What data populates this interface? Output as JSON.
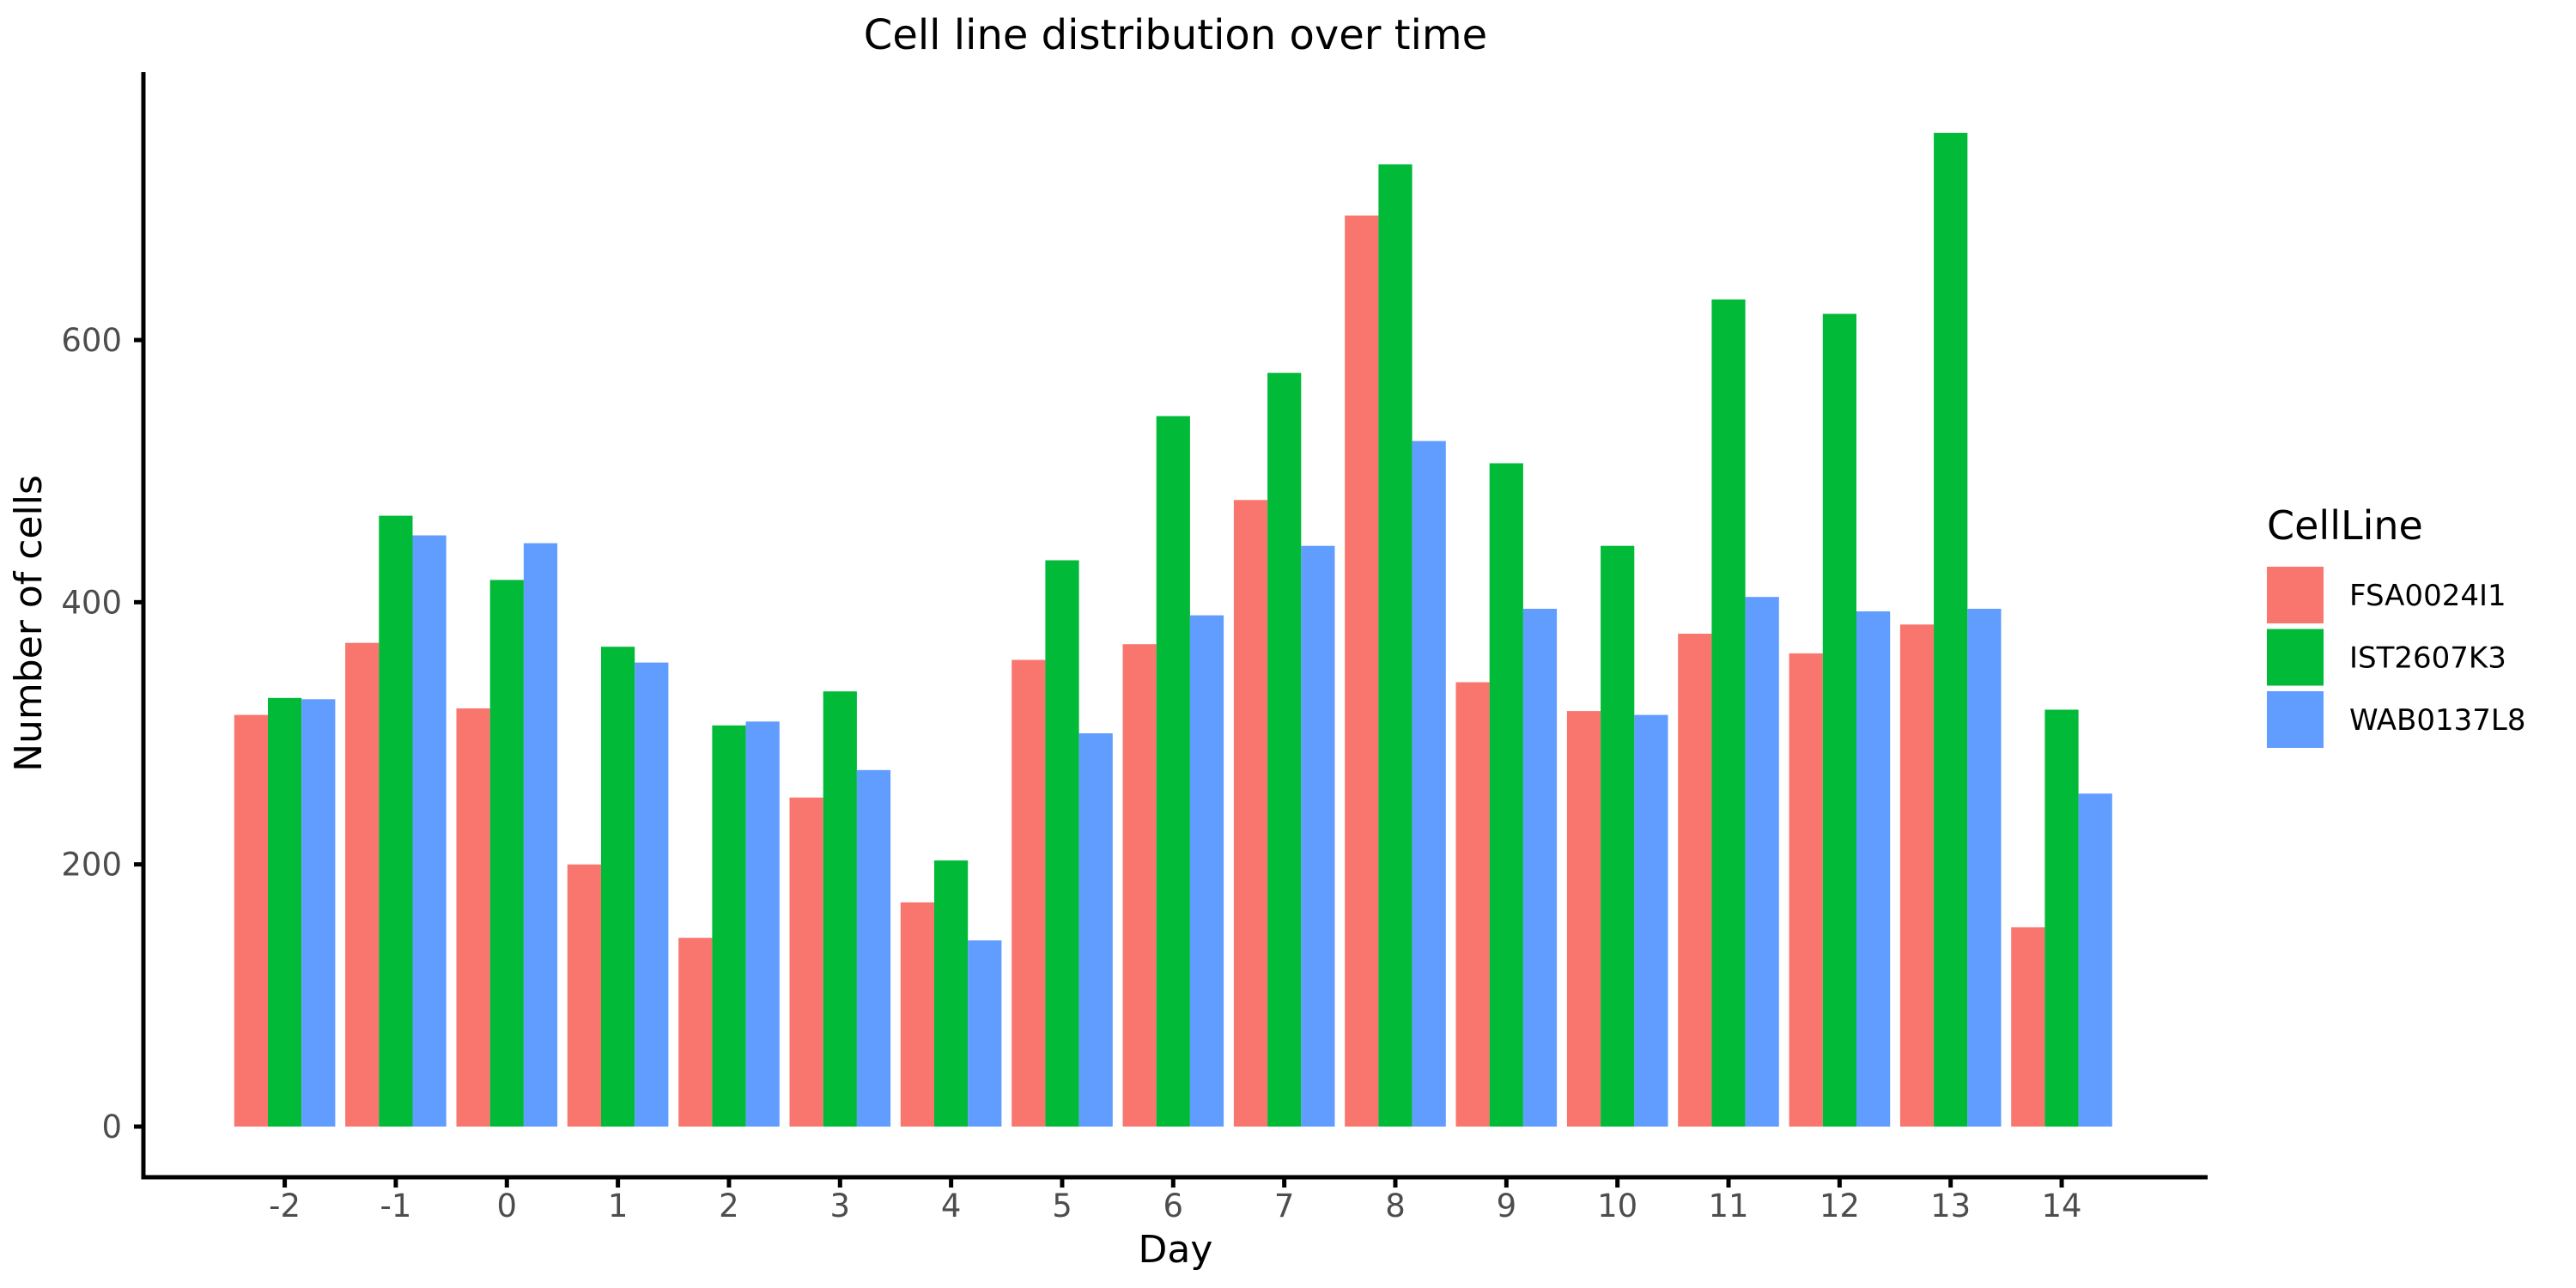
{
  "chart_data": {
    "type": "bar",
    "title": "Cell line distribution over time",
    "xlabel": "Day",
    "ylabel": "Number of cells",
    "legend_title": "CellLine",
    "legend_position": "right",
    "grid": false,
    "background": "#ffffff",
    "axis_color": "#000000",
    "tick_label_color": "#4D4D4D",
    "categories": [
      "-2",
      "-1",
      "0",
      "1",
      "2",
      "3",
      "4",
      "5",
      "6",
      "7",
      "8",
      "9",
      "10",
      "11",
      "12",
      "13",
      "14"
    ],
    "series": [
      {
        "name": "FSA0024I1",
        "color": "#F8766D",
        "values": [
          314,
          369,
          319,
          200,
          144,
          251,
          171,
          356,
          368,
          478,
          695,
          339,
          317,
          376,
          361,
          383,
          152
        ]
      },
      {
        "name": "IST2607K3",
        "color": "#00BA38",
        "values": [
          327,
          466,
          417,
          366,
          306,
          332,
          203,
          432,
          542,
          575,
          734,
          506,
          443,
          631,
          620,
          758,
          318
        ]
      },
      {
        "name": "WAB0137L8",
        "color": "#619CFF",
        "values": [
          326,
          451,
          445,
          354,
          309,
          272,
          142,
          300,
          390,
          443,
          523,
          395,
          314,
          404,
          393,
          395,
          254
        ]
      }
    ],
    "yticks": [
      0,
      200,
      400,
      600
    ],
    "ylim": [
      0,
      800
    ]
  }
}
